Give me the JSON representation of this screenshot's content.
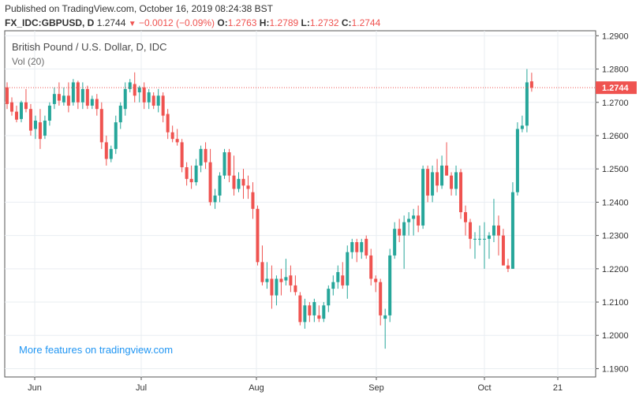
{
  "header": {
    "published": "Published on TradingView.com, October 16, 2019 08:24:38 BST",
    "symbol": "FX_IDC:GBPUSD, D",
    "last": "1.2744",
    "change": "−0.0012 (−0.09%)",
    "o_label": "O:",
    "o_value": "1.2763",
    "h_label": "H:",
    "h_value": "1.2789",
    "l_label": "L:",
    "l_value": "1.2732",
    "c_label": "C:",
    "c_value": "1.2744",
    "down_icon": "triangle-down-icon"
  },
  "legend": {
    "title": "British Pound / U.S. Dollar, D, IDC",
    "volume": "Vol (20)"
  },
  "promo": "More features on tradingview.com",
  "last_price_label": "1.2744",
  "colors": {
    "up": "#26a69a",
    "down": "#ef5350",
    "grid": "#e9eef2",
    "axis": "#555555",
    "price_line": "#ef5350",
    "promo": "#2196f3"
  },
  "chart_data": {
    "type": "candlestick",
    "ylim": [
      1.1875,
      1.2915
    ],
    "y_ticks": [
      "1.1900",
      "1.2000",
      "1.2100",
      "1.2200",
      "1.2300",
      "1.2400",
      "1.2500",
      "1.2600",
      "1.2700",
      "1.2800",
      "1.2900"
    ],
    "x_ticks": [
      "Jun",
      "Jul",
      "Aug",
      "Sep",
      "Oct",
      "21"
    ],
    "last_price": 1.2744,
    "grid": true,
    "candles": [
      {
        "o": 1.2745,
        "h": 1.276,
        "l": 1.268,
        "c": 1.2695
      },
      {
        "o": 1.27,
        "h": 1.2715,
        "l": 1.266,
        "c": 1.2672
      },
      {
        "o": 1.2672,
        "h": 1.269,
        "l": 1.264,
        "c": 1.2648
      },
      {
        "o": 1.265,
        "h": 1.2705,
        "l": 1.264,
        "c": 1.27
      },
      {
        "o": 1.27,
        "h": 1.274,
        "l": 1.267,
        "c": 1.268
      },
      {
        "o": 1.268,
        "h": 1.2695,
        "l": 1.26,
        "c": 1.2615
      },
      {
        "o": 1.262,
        "h": 1.266,
        "l": 1.259,
        "c": 1.2645
      },
      {
        "o": 1.264,
        "h": 1.268,
        "l": 1.256,
        "c": 1.259
      },
      {
        "o": 1.26,
        "h": 1.266,
        "l": 1.259,
        "c": 1.2645
      },
      {
        "o": 1.2645,
        "h": 1.27,
        "l": 1.263,
        "c": 1.269
      },
      {
        "o": 1.2695,
        "h": 1.2745,
        "l": 1.268,
        "c": 1.2725
      },
      {
        "o": 1.2725,
        "h": 1.276,
        "l": 1.269,
        "c": 1.2705
      },
      {
        "o": 1.27,
        "h": 1.2745,
        "l": 1.269,
        "c": 1.272
      },
      {
        "o": 1.272,
        "h": 1.276,
        "l": 1.267,
        "c": 1.269
      },
      {
        "o": 1.27,
        "h": 1.277,
        "l": 1.269,
        "c": 1.276
      },
      {
        "o": 1.276,
        "h": 1.2765,
        "l": 1.268,
        "c": 1.27
      },
      {
        "o": 1.27,
        "h": 1.276,
        "l": 1.268,
        "c": 1.274
      },
      {
        "o": 1.274,
        "h": 1.275,
        "l": 1.268,
        "c": 1.269
      },
      {
        "o": 1.269,
        "h": 1.272,
        "l": 1.268,
        "c": 1.271
      },
      {
        "o": 1.271,
        "h": 1.2725,
        "l": 1.266,
        "c": 1.268
      },
      {
        "o": 1.268,
        "h": 1.27,
        "l": 1.256,
        "c": 1.258
      },
      {
        "o": 1.258,
        "h": 1.26,
        "l": 1.251,
        "c": 1.253
      },
      {
        "o": 1.253,
        "h": 1.257,
        "l": 1.252,
        "c": 1.256
      },
      {
        "o": 1.256,
        "h": 1.266,
        "l": 1.2545,
        "c": 1.264
      },
      {
        "o": 1.264,
        "h": 1.27,
        "l": 1.262,
        "c": 1.269
      },
      {
        "o": 1.268,
        "h": 1.276,
        "l": 1.266,
        "c": 1.274
      },
      {
        "o": 1.274,
        "h": 1.277,
        "l": 1.273,
        "c": 1.276
      },
      {
        "o": 1.2755,
        "h": 1.279,
        "l": 1.27,
        "c": 1.272
      },
      {
        "o": 1.273,
        "h": 1.275,
        "l": 1.27,
        "c": 1.2745
      },
      {
        "o": 1.2745,
        "h": 1.276,
        "l": 1.268,
        "c": 1.27
      },
      {
        "o": 1.27,
        "h": 1.274,
        "l": 1.268,
        "c": 1.273
      },
      {
        "o": 1.272,
        "h": 1.273,
        "l": 1.268,
        "c": 1.269
      },
      {
        "o": 1.269,
        "h": 1.274,
        "l": 1.267,
        "c": 1.272
      },
      {
        "o": 1.272,
        "h": 1.273,
        "l": 1.264,
        "c": 1.266
      },
      {
        "o": 1.2665,
        "h": 1.268,
        "l": 1.259,
        "c": 1.261
      },
      {
        "o": 1.261,
        "h": 1.263,
        "l": 1.258,
        "c": 1.259
      },
      {
        "o": 1.259,
        "h": 1.262,
        "l": 1.257,
        "c": 1.258
      },
      {
        "o": 1.258,
        "h": 1.259,
        "l": 1.249,
        "c": 1.2505
      },
      {
        "o": 1.2505,
        "h": 1.252,
        "l": 1.245,
        "c": 1.247
      },
      {
        "o": 1.247,
        "h": 1.251,
        "l": 1.244,
        "c": 1.246
      },
      {
        "o": 1.246,
        "h": 1.253,
        "l": 1.245,
        "c": 1.251
      },
      {
        "o": 1.251,
        "h": 1.257,
        "l": 1.249,
        "c": 1.256
      },
      {
        "o": 1.256,
        "h": 1.258,
        "l": 1.25,
        "c": 1.252
      },
      {
        "o": 1.252,
        "h": 1.256,
        "l": 1.239,
        "c": 1.24
      },
      {
        "o": 1.24,
        "h": 1.244,
        "l": 1.238,
        "c": 1.242
      },
      {
        "o": 1.242,
        "h": 1.249,
        "l": 1.24,
        "c": 1.248
      },
      {
        "o": 1.248,
        "h": 1.256,
        "l": 1.247,
        "c": 1.255
      },
      {
        "o": 1.255,
        "h": 1.256,
        "l": 1.246,
        "c": 1.248
      },
      {
        "o": 1.248,
        "h": 1.254,
        "l": 1.242,
        "c": 1.244
      },
      {
        "o": 1.244,
        "h": 1.249,
        "l": 1.243,
        "c": 1.247
      },
      {
        "o": 1.247,
        "h": 1.25,
        "l": 1.241,
        "c": 1.245
      },
      {
        "o": 1.245,
        "h": 1.248,
        "l": 1.241,
        "c": 1.244
      },
      {
        "o": 1.243,
        "h": 1.246,
        "l": 1.235,
        "c": 1.238
      },
      {
        "o": 1.238,
        "h": 1.239,
        "l": 1.221,
        "c": 1.222
      },
      {
        "o": 1.222,
        "h": 1.227,
        "l": 1.215,
        "c": 1.216
      },
      {
        "o": 1.216,
        "h": 1.222,
        "l": 1.214,
        "c": 1.217
      },
      {
        "o": 1.217,
        "h": 1.221,
        "l": 1.208,
        "c": 1.212
      },
      {
        "o": 1.212,
        "h": 1.218,
        "l": 1.209,
        "c": 1.217
      },
      {
        "o": 1.217,
        "h": 1.22,
        "l": 1.212,
        "c": 1.216
      },
      {
        "o": 1.2165,
        "h": 1.223,
        "l": 1.215,
        "c": 1.2175
      },
      {
        "o": 1.218,
        "h": 1.221,
        "l": 1.213,
        "c": 1.215
      },
      {
        "o": 1.215,
        "h": 1.218,
        "l": 1.212,
        "c": 1.213
      },
      {
        "o": 1.212,
        "h": 1.213,
        "l": 1.203,
        "c": 1.204
      },
      {
        "o": 1.204,
        "h": 1.211,
        "l": 1.202,
        "c": 1.209
      },
      {
        "o": 1.209,
        "h": 1.21,
        "l": 1.204,
        "c": 1.206
      },
      {
        "o": 1.206,
        "h": 1.211,
        "l": 1.204,
        "c": 1.21
      },
      {
        "o": 1.206,
        "h": 1.209,
        "l": 1.204,
        "c": 1.205
      },
      {
        "o": 1.205,
        "h": 1.21,
        "l": 1.204,
        "c": 1.209
      },
      {
        "o": 1.209,
        "h": 1.215,
        "l": 1.207,
        "c": 1.214
      },
      {
        "o": 1.214,
        "h": 1.218,
        "l": 1.212,
        "c": 1.216
      },
      {
        "o": 1.216,
        "h": 1.221,
        "l": 1.214,
        "c": 1.219
      },
      {
        "o": 1.218,
        "h": 1.222,
        "l": 1.214,
        "c": 1.215
      },
      {
        "o": 1.215,
        "h": 1.227,
        "l": 1.211,
        "c": 1.225
      },
      {
        "o": 1.225,
        "h": 1.229,
        "l": 1.223,
        "c": 1.228
      },
      {
        "o": 1.228,
        "h": 1.229,
        "l": 1.222,
        "c": 1.225
      },
      {
        "o": 1.225,
        "h": 1.229,
        "l": 1.223,
        "c": 1.228
      },
      {
        "o": 1.229,
        "h": 1.23,
        "l": 1.223,
        "c": 1.224
      },
      {
        "o": 1.224,
        "h": 1.226,
        "l": 1.215,
        "c": 1.217
      },
      {
        "o": 1.217,
        "h": 1.218,
        "l": 1.213,
        "c": 1.216
      },
      {
        "o": 1.216,
        "h": 1.217,
        "l": 1.203,
        "c": 1.206
      },
      {
        "o": 1.205,
        "h": 1.208,
        "l": 1.196,
        "c": 1.206
      },
      {
        "o": 1.206,
        "h": 1.226,
        "l": 1.204,
        "c": 1.224
      },
      {
        "o": 1.224,
        "h": 1.234,
        "l": 1.223,
        "c": 1.232
      },
      {
        "o": 1.232,
        "h": 1.235,
        "l": 1.228,
        "c": 1.23
      },
      {
        "o": 1.23,
        "h": 1.236,
        "l": 1.22,
        "c": 1.234
      },
      {
        "o": 1.234,
        "h": 1.237,
        "l": 1.23,
        "c": 1.235
      },
      {
        "o": 1.235,
        "h": 1.238,
        "l": 1.23,
        "c": 1.236
      },
      {
        "o": 1.236,
        "h": 1.239,
        "l": 1.231,
        "c": 1.233
      },
      {
        "o": 1.233,
        "h": 1.251,
        "l": 1.232,
        "c": 1.25
      },
      {
        "o": 1.25,
        "h": 1.251,
        "l": 1.24,
        "c": 1.242
      },
      {
        "o": 1.242,
        "h": 1.251,
        "l": 1.24,
        "c": 1.249
      },
      {
        "o": 1.249,
        "h": 1.253,
        "l": 1.243,
        "c": 1.245
      },
      {
        "o": 1.245,
        "h": 1.254,
        "l": 1.244,
        "c": 1.251
      },
      {
        "o": 1.251,
        "h": 1.258,
        "l": 1.248,
        "c": 1.248
      },
      {
        "o": 1.248,
        "h": 1.249,
        "l": 1.242,
        "c": 1.244
      },
      {
        "o": 1.244,
        "h": 1.251,
        "l": 1.242,
        "c": 1.249
      },
      {
        "o": 1.249,
        "h": 1.25,
        "l": 1.235,
        "c": 1.237
      },
      {
        "o": 1.237,
        "h": 1.239,
        "l": 1.23,
        "c": 1.234
      },
      {
        "o": 1.234,
        "h": 1.235,
        "l": 1.226,
        "c": 1.229
      },
      {
        "o": 1.229,
        "h": 1.231,
        "l": 1.223,
        "c": 1.229
      },
      {
        "o": 1.229,
        "h": 1.233,
        "l": 1.227,
        "c": 1.229
      },
      {
        "o": 1.229,
        "h": 1.234,
        "l": 1.22,
        "c": 1.229
      },
      {
        "o": 1.229,
        "h": 1.231,
        "l": 1.223,
        "c": 1.23
      },
      {
        "o": 1.23,
        "h": 1.241,
        "l": 1.228,
        "c": 1.233
      },
      {
        "o": 1.233,
        "h": 1.236,
        "l": 1.224,
        "c": 1.23
      },
      {
        "o": 1.23,
        "h": 1.232,
        "l": 1.221,
        "c": 1.221
      },
      {
        "o": 1.221,
        "h": 1.223,
        "l": 1.219,
        "c": 1.22
      },
      {
        "o": 1.22,
        "h": 1.246,
        "l": 1.22,
        "c": 1.243
      },
      {
        "o": 1.243,
        "h": 1.264,
        "l": 1.242,
        "c": 1.262
      },
      {
        "o": 1.262,
        "h": 1.266,
        "l": 1.261,
        "c": 1.263
      },
      {
        "o": 1.263,
        "h": 1.28,
        "l": 1.261,
        "c": 1.276
      },
      {
        "o": 1.2763,
        "h": 1.2789,
        "l": 1.2732,
        "c": 1.2744
      }
    ]
  }
}
